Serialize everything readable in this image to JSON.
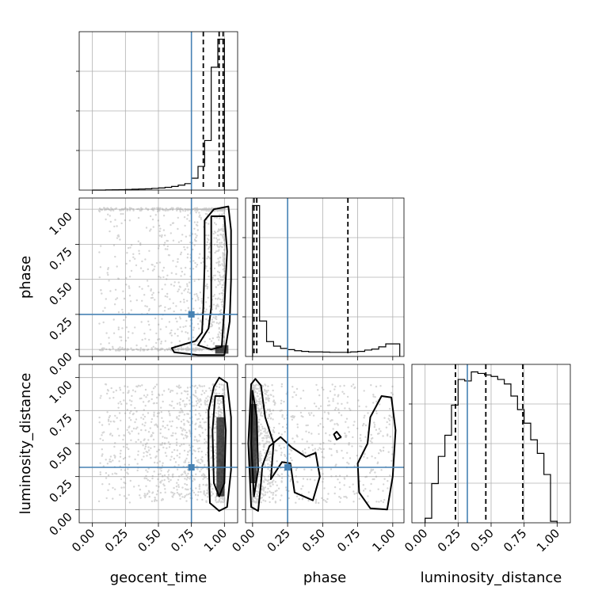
{
  "chart_data": {
    "type": "corner",
    "parameters": [
      "geocent_time",
      "phase",
      "luminosity_distance"
    ],
    "ranges": [
      [
        -0.1,
        1.1
      ],
      [
        -0.05,
        1.08
      ],
      [
        -0.1,
        1.1
      ]
    ],
    "tick_labels": [
      "0.00",
      "0.25",
      "0.50",
      "0.75",
      "1.00"
    ],
    "truths": [
      0.75,
      0.25,
      0.32
    ],
    "truth_color": "#4682b4",
    "marginals": [
      {
        "parameter": "geocent_time",
        "bin_edges": [
          0.0,
          0.05,
          0.1,
          0.15,
          0.2,
          0.25,
          0.3,
          0.35,
          0.4,
          0.45,
          0.5,
          0.55,
          0.6,
          0.65,
          0.7,
          0.75,
          0.8,
          0.85,
          0.9,
          0.95,
          1.0
        ],
        "density": [
          0.0,
          0.0,
          0.01,
          0.015,
          0.02,
          0.03,
          0.04,
          0.05,
          0.06,
          0.08,
          0.1,
          0.13,
          0.17,
          0.23,
          0.3,
          0.55,
          1.1,
          2.3,
          5.7,
          7.0
        ],
        "quantiles": [
          0.84,
          0.96,
          0.99
        ]
      },
      {
        "parameter": "phase",
        "bin_edges": [
          0.0,
          0.05,
          0.1,
          0.15,
          0.2,
          0.25,
          0.3,
          0.35,
          0.4,
          0.45,
          0.5,
          0.55,
          0.6,
          0.65,
          0.7,
          0.75,
          0.8,
          0.85,
          0.9,
          0.95,
          1.0,
          1.05
        ],
        "density": [
          6.6,
          1.55,
          0.65,
          0.45,
          0.35,
          0.3,
          0.25,
          0.22,
          0.2,
          0.2,
          0.19,
          0.18,
          0.18,
          0.18,
          0.2,
          0.22,
          0.28,
          0.32,
          0.42,
          0.55,
          0.55
        ],
        "quantiles": [
          0.01,
          0.03,
          0.68
        ]
      },
      {
        "parameter": "luminosity_distance",
        "bin_edges": [
          0.0,
          0.05,
          0.1,
          0.15,
          0.2,
          0.25,
          0.3,
          0.35,
          0.4,
          0.45,
          0.5,
          0.55,
          0.6,
          0.65,
          0.7,
          0.75,
          0.8,
          0.85,
          0.9,
          0.95,
          1.0
        ],
        "density": [
          0.03,
          0.26,
          0.44,
          0.58,
          0.78,
          0.95,
          0.94,
          1.0,
          0.99,
          0.98,
          0.97,
          0.95,
          0.92,
          0.84,
          0.75,
          0.66,
          0.55,
          0.46,
          0.32,
          0.01
        ],
        "quantiles": [
          0.23,
          0.46,
          0.74
        ]
      }
    ],
    "contours": [
      {
        "x_param": "geocent_time",
        "y_param": "phase",
        "levels": [
          [
            [
              0.92,
              1.0
            ],
            [
              0.85,
              0.92
            ],
            [
              0.85,
              0.6
            ],
            [
              0.84,
              0.3
            ],
            [
              0.83,
              0.12
            ],
            [
              0.78,
              0.06
            ],
            [
              0.6,
              0.01
            ],
            [
              0.62,
              -0.02
            ],
            [
              0.8,
              -0.04
            ],
            [
              1.0,
              -0.04
            ],
            [
              1.04,
              0.2
            ],
            [
              1.05,
              0.5
            ],
            [
              1.05,
              0.85
            ],
            [
              1.03,
              1.02
            ]
          ],
          [
            [
              0.9,
              0.95
            ],
            [
              0.9,
              0.6
            ],
            [
              0.9,
              0.3
            ],
            [
              0.88,
              0.15
            ],
            [
              0.8,
              0.03
            ],
            [
              0.9,
              0.0
            ],
            [
              0.98,
              0.02
            ],
            [
              1.0,
              0.3
            ],
            [
              1.02,
              0.7
            ],
            [
              1.0,
              0.95
            ]
          ]
        ]
      },
      {
        "x_param": "geocent_time",
        "y_param": "luminosity_distance",
        "levels": [
          [
            [
              0.92,
              0.93
            ],
            [
              0.88,
              0.75
            ],
            [
              0.88,
              0.4
            ],
            [
              0.89,
              0.05
            ],
            [
              0.96,
              -0.01
            ],
            [
              1.02,
              0.02
            ],
            [
              1.05,
              0.3
            ],
            [
              1.05,
              0.7
            ],
            [
              1.02,
              0.96
            ],
            [
              0.96,
              1.0
            ]
          ],
          [
            [
              0.93,
              0.86
            ],
            [
              0.91,
              0.6
            ],
            [
              0.92,
              0.2
            ],
            [
              0.96,
              0.1
            ],
            [
              1.0,
              0.2
            ],
            [
              1.01,
              0.6
            ],
            [
              0.99,
              0.86
            ]
          ]
        ]
      },
      {
        "x_param": "phase",
        "y_param": "luminosity_distance",
        "levels": [
          [
            [
              -0.01,
              0.95
            ],
            [
              -0.03,
              0.5
            ],
            [
              -0.01,
              0.02
            ],
            [
              0.04,
              -0.01
            ],
            [
              0.06,
              0.2
            ],
            [
              0.07,
              0.33
            ],
            [
              0.12,
              0.48
            ],
            [
              0.2,
              0.55
            ],
            [
              0.28,
              0.47
            ],
            [
              0.38,
              0.4
            ],
            [
              0.45,
              0.43
            ],
            [
              0.48,
              0.25
            ],
            [
              0.43,
              0.07
            ],
            [
              0.3,
              0.13
            ],
            [
              0.27,
              0.35
            ],
            [
              0.21,
              0.36
            ],
            [
              0.13,
              0.23
            ],
            [
              0.15,
              0.5
            ],
            [
              0.09,
              0.7
            ],
            [
              0.06,
              0.94
            ],
            [
              0.02,
              0.99
            ]
          ],
          [
            [
              0.0,
              0.9
            ],
            [
              -0.01,
              0.5
            ],
            [
              0.01,
              0.1
            ],
            [
              0.04,
              0.3
            ],
            [
              0.03,
              0.7
            ]
          ],
          [
            [
              0.92,
              0.86
            ],
            [
              0.84,
              0.7
            ],
            [
              0.82,
              0.5
            ],
            [
              0.75,
              0.35
            ],
            [
              0.76,
              0.13
            ],
            [
              0.84,
              0.01
            ],
            [
              0.96,
              0.0
            ],
            [
              1.0,
              0.25
            ],
            [
              1.02,
              0.6
            ],
            [
              0.99,
              0.85
            ]
          ],
          [
            [
              0.58,
              0.57
            ],
            [
              0.6,
              0.53
            ],
            [
              0.63,
              0.55
            ],
            [
              0.6,
              0.59
            ]
          ]
        ]
      }
    ],
    "peak_cells": [
      {
        "x_param": "geocent_time",
        "y_param": "phase",
        "x": [
          0.93,
          1.03
        ],
        "y": [
          -0.03,
          0.03
        ]
      },
      {
        "x_param": "geocent_time",
        "y_param": "luminosity_distance",
        "x": [
          0.94,
          1.0
        ],
        "y": [
          0.1,
          0.7
        ]
      },
      {
        "x_param": "phase",
        "y_param": "luminosity_distance",
        "x": [
          -0.02,
          0.03
        ],
        "y": [
          0.2,
          0.8
        ]
      }
    ]
  }
}
